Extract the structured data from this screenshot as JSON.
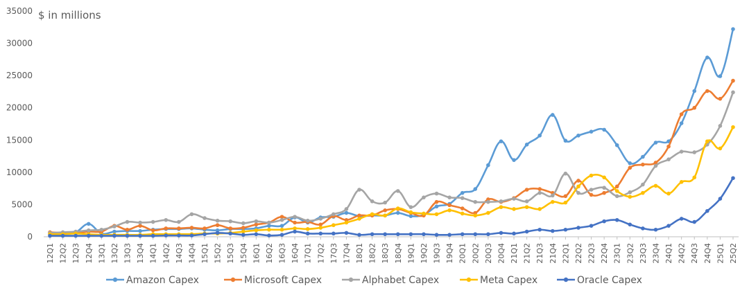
{
  "chart_data": {
    "type": "line",
    "title": "",
    "ylabel": "$ in millions",
    "xlabel": "",
    "ylim": [
      0,
      35000
    ],
    "yticks": [
      0,
      5000,
      10000,
      15000,
      20000,
      25000,
      30000,
      35000
    ],
    "grid": false,
    "legend": "bottom",
    "categories": [
      "12Q1",
      "12Q2",
      "12Q3",
      "12Q4",
      "13Q1",
      "13Q2",
      "13Q3",
      "13Q4",
      "14Q1",
      "14Q2",
      "14Q3",
      "14Q4",
      "15Q1",
      "15Q2",
      "15Q3",
      "15Q4",
      "16Q1",
      "16Q2",
      "16Q3",
      "16Q4",
      "17Q1",
      "17Q2",
      "17Q3",
      "17Q4",
      "18Q1",
      "18Q2",
      "18Q3",
      "18Q4",
      "19Q1",
      "19Q2",
      "19Q3",
      "19Q4",
      "20Q1",
      "20Q2",
      "20Q3",
      "20Q4",
      "21Q1",
      "21Q2",
      "21Q3",
      "21Q4",
      "22Q1",
      "22Q2",
      "22Q3",
      "22Q4",
      "23Q1",
      "23Q2",
      "23Q3",
      "23Q4",
      "24Q1",
      "24Q2",
      "24Q3",
      "24Q4",
      "25Q1",
      "25Q2"
    ],
    "series": [
      {
        "name": "Amazon Capex",
        "color": "#5b9bd5",
        "values": [
          400,
          500,
          700,
          2000,
          500,
          800,
          900,
          900,
          1100,
          1200,
          1200,
          1300,
          1100,
          1000,
          1200,
          1200,
          1300,
          1700,
          1700,
          3000,
          2200,
          3000,
          3100,
          3700,
          3200,
          3300,
          3300,
          3700,
          3200,
          3400,
          4700,
          5100,
          6800,
          7400,
          11100,
          14800,
          11900,
          14300,
          15700,
          18900,
          14900,
          15700,
          16300,
          16600,
          14200,
          11400,
          12400,
          14600,
          14800,
          17600,
          22600,
          27800,
          24900,
          32200
        ]
      },
      {
        "name": "Microsoft Capex",
        "color": "#ed7d31",
        "values": [
          700,
          600,
          600,
          800,
          800,
          1700,
          1100,
          1700,
          1000,
          1300,
          1300,
          1400,
          1300,
          1800,
          1300,
          1400,
          1900,
          2200,
          3100,
          2200,
          2300,
          1900,
          3200,
          2600,
          3300,
          3300,
          4100,
          4300,
          3700,
          3300,
          5400,
          4900,
          4400,
          3700,
          5800,
          5400,
          6000,
          7300,
          7400,
          6800,
          6300,
          8700,
          6500,
          6800,
          7800,
          10700,
          11200,
          11500,
          14000,
          19000,
          20000,
          22600,
          21400,
          24200
        ]
      },
      {
        "name": "Alphabet Capex",
        "color": "#a5a5a5",
        "values": [
          600,
          700,
          800,
          1000,
          1100,
          1600,
          2300,
          2200,
          2300,
          2600,
          2300,
          3500,
          2900,
          2500,
          2400,
          2100,
          2400,
          2200,
          2600,
          3100,
          2500,
          2800,
          3500,
          4300,
          7300,
          5500,
          5300,
          7100,
          4600,
          6100,
          6700,
          6100,
          6000,
          5400,
          5400,
          5500,
          5900,
          5500,
          6800,
          6400,
          9800,
          6800,
          7300,
          7600,
          6300,
          6900,
          8100,
          11000,
          12000,
          13200,
          13100,
          14300,
          17200,
          22400
        ]
      },
      {
        "name": "Meta Capex",
        "color": "#ffc000",
        "values": [
          400,
          400,
          500,
          400,
          300,
          300,
          300,
          300,
          400,
          400,
          400,
          400,
          500,
          500,
          600,
          800,
          1000,
          1100,
          1100,
          1300,
          1200,
          1400,
          1800,
          2200,
          2800,
          3500,
          3300,
          4400,
          3800,
          3600,
          3500,
          4100,
          3600,
          3300,
          3700,
          4600,
          4300,
          4600,
          4300,
          5400,
          5300,
          7800,
          9500,
          9200,
          7100,
          6200,
          6800,
          7900,
          6700,
          8500,
          9200,
          14800,
          13700,
          17000
        ]
      },
      {
        "name": "Oracle Capex",
        "color": "#4472c4",
        "values": [
          150,
          150,
          150,
          150,
          150,
          150,
          150,
          150,
          150,
          200,
          200,
          200,
          400,
          600,
          500,
          300,
          400,
          200,
          300,
          800,
          500,
          500,
          500,
          600,
          300,
          400,
          400,
          400,
          400,
          400,
          300,
          300,
          400,
          400,
          400,
          600,
          500,
          800,
          1100,
          900,
          1100,
          1400,
          1700,
          2400,
          2600,
          1900,
          1300,
          1100,
          1700,
          2800,
          2300,
          4000,
          5900,
          9100
        ]
      }
    ]
  }
}
